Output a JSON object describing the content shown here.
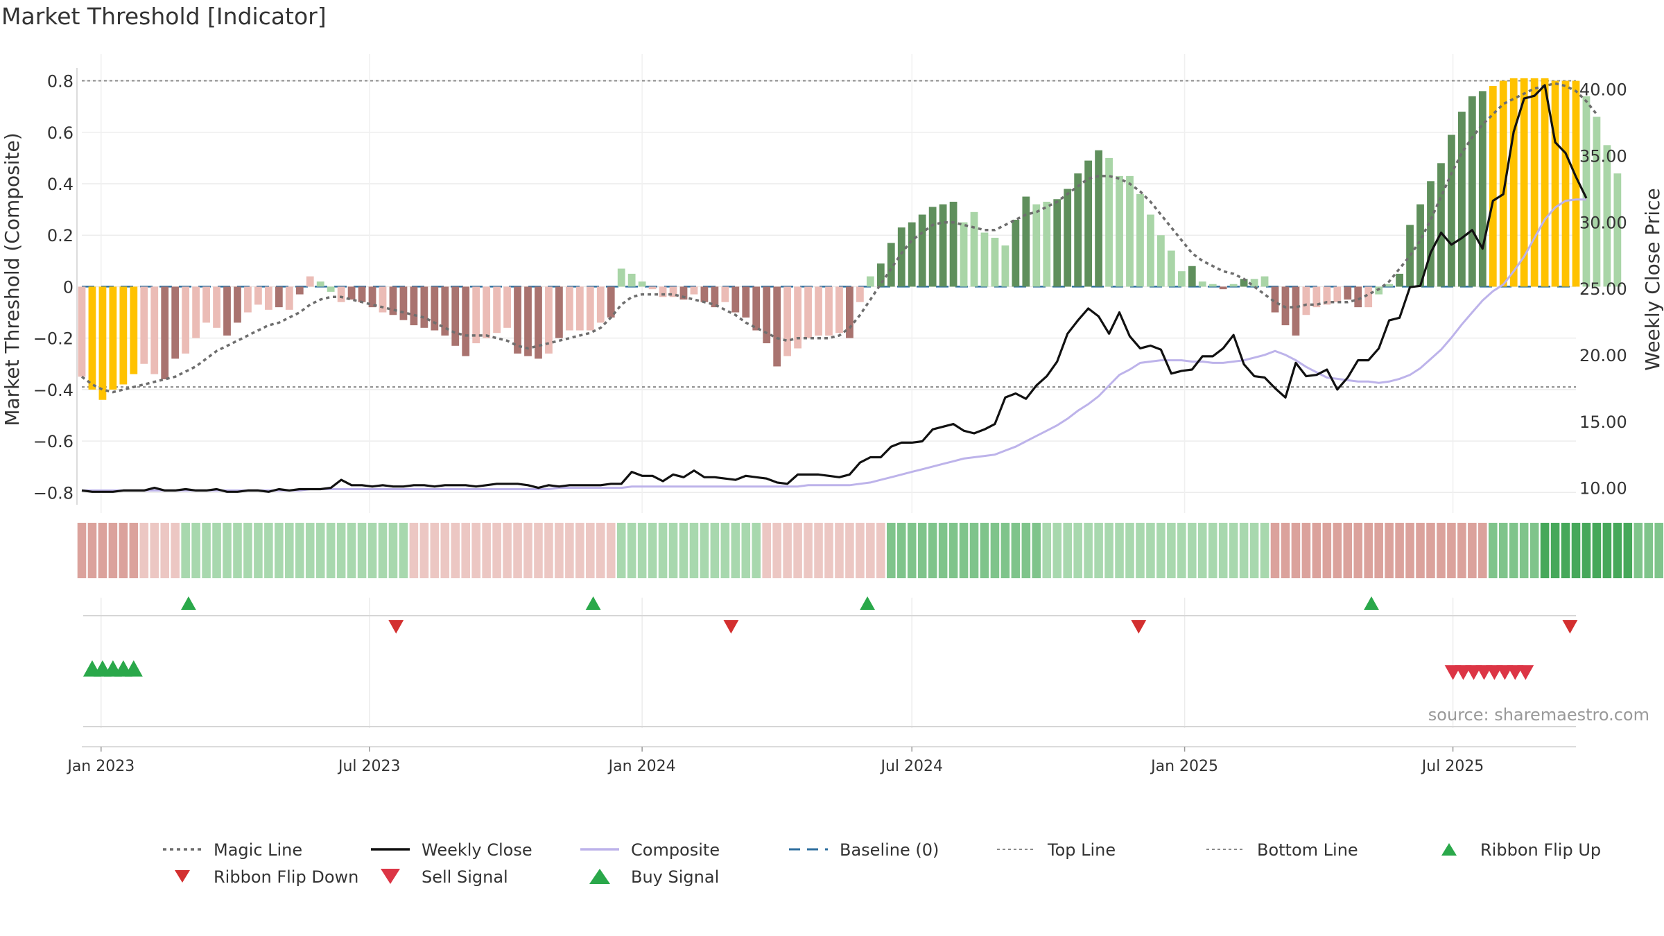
{
  "title": "Market Threshold [Indicator]",
  "source_text": "source: sharemaestro.com",
  "colors": {
    "magic_line": "#6e6e6e",
    "weekly_close": "#111111",
    "composite": "#bdb3ea",
    "baseline": "#2f6f9f",
    "threshold_lines": "#8a8a8a",
    "up_strong": "#5f8f5c",
    "up_weak": "#a9d5a7",
    "down_strong": "#a9736f",
    "down_weak": "#ebbcb6",
    "extreme": "#ffc200",
    "buy": "#2aa84a",
    "sell": "#dc3545",
    "flip_down": "#d32f2f"
  },
  "chart_data": {
    "type": "bar",
    "title": "Market Threshold [Indicator]",
    "ylabel": "Market Threshold (Composite)",
    "y2label": "Weekly Close Price",
    "ylim": [
      -0.88,
      0.85
    ],
    "y2lim": [
      8.1,
      41.6
    ],
    "yticks": [
      "0.8",
      "0.6",
      "0.4",
      "0.2",
      "0",
      "−0.2",
      "−0.4",
      "−0.6",
      "−0.8"
    ],
    "y2ticks": [
      "40.00",
      "35.00",
      "30.00",
      "25.00",
      "20.00",
      "15.00",
      "10.00"
    ],
    "x_range": [
      "2022-12-19",
      "2025-09-22"
    ],
    "x_ticks": [
      {
        "date": "2023-01-01",
        "label": "Jan 2023"
      },
      {
        "date": "2023-07-01",
        "label": "Jul 2023"
      },
      {
        "date": "2024-01-01",
        "label": "Jan 2024"
      },
      {
        "date": "2024-07-01",
        "label": "Jul 2024"
      },
      {
        "date": "2025-01-01",
        "label": "Jan 2025"
      },
      {
        "date": "2025-07-01",
        "label": "Jul 2025"
      }
    ],
    "reference_lines": {
      "top_line": 0.8,
      "bottom_line": -0.39,
      "baseline": 0
    },
    "grid": true,
    "legend_position": "bottom",
    "legend": [
      {
        "label": "Magic Line",
        "kind": "dotted"
      },
      {
        "label": "Weekly Close",
        "kind": "solid-black"
      },
      {
        "label": "Composite",
        "kind": "solid-lavender"
      },
      {
        "label": "Baseline (0)",
        "kind": "dashed-blue"
      },
      {
        "label": "Top Line",
        "kind": "dotted-thin"
      },
      {
        "label": "Bottom Line",
        "kind": "dotted-thin"
      },
      {
        "label": "Ribbon Flip Up",
        "kind": "tri-up-small"
      },
      {
        "label": "Ribbon Flip Down",
        "kind": "tri-down-small"
      },
      {
        "label": "Sell Signal",
        "kind": "tri-down-big"
      },
      {
        "label": "Buy Signal",
        "kind": "tri-up-big"
      }
    ],
    "start_date": "2022-12-19",
    "composite_bars": [
      -0.35,
      -0.4,
      -0.44,
      -0.4,
      -0.38,
      -0.34,
      -0.3,
      -0.34,
      -0.36,
      -0.28,
      -0.26,
      -0.2,
      -0.14,
      -0.16,
      -0.19,
      -0.14,
      -0.1,
      -0.07,
      -0.09,
      -0.08,
      -0.09,
      -0.03,
      0.04,
      0.02,
      -0.02,
      -0.06,
      -0.05,
      -0.06,
      -0.08,
      -0.1,
      -0.11,
      -0.13,
      -0.15,
      -0.16,
      -0.17,
      -0.19,
      -0.23,
      -0.27,
      -0.22,
      -0.2,
      -0.18,
      -0.16,
      -0.26,
      -0.27,
      -0.28,
      -0.26,
      -0.2,
      -0.17,
      -0.17,
      -0.17,
      -0.14,
      -0.12,
      0.07,
      0.05,
      0.02,
      -0.01,
      -0.04,
      -0.04,
      -0.05,
      -0.03,
      -0.06,
      -0.08,
      -0.06,
      -0.1,
      -0.12,
      -0.17,
      -0.22,
      -0.31,
      -0.27,
      -0.24,
      -0.2,
      -0.19,
      -0.19,
      -0.18,
      -0.2,
      -0.06,
      0.04,
      0.09,
      0.17,
      0.23,
      0.25,
      0.28,
      0.31,
      0.32,
      0.33,
      0.25,
      0.29,
      0.21,
      0.19,
      0.16,
      0.26,
      0.35,
      0.32,
      0.33,
      0.34,
      0.38,
      0.44,
      0.49,
      0.53,
      0.5,
      0.43,
      0.43,
      0.36,
      0.28,
      0.2,
      0.14,
      0.06,
      0.08,
      0.02,
      0.01,
      -0.01,
      0.01,
      0.03,
      0.03,
      0.04,
      -0.1,
      -0.15,
      -0.19,
      -0.11,
      -0.08,
      -0.07,
      -0.06,
      -0.05,
      -0.08,
      -0.08,
      -0.03,
      0.01,
      0.05,
      0.24,
      0.32,
      0.41,
      0.48,
      0.59,
      0.68,
      0.74,
      0.76,
      0.78,
      0.8,
      0.81,
      0.81,
      0.81,
      0.81,
      0.8,
      0.8,
      0.8,
      0.74,
      0.66,
      0.55,
      0.44
    ],
    "bar_colors": [
      "down_weak",
      "extreme",
      "extreme",
      "extreme",
      "extreme",
      "extreme",
      "down_weak",
      "down_weak",
      "down_strong",
      "down_strong",
      "down_weak",
      "down_weak",
      "down_weak",
      "down_weak",
      "down_strong",
      "down_strong",
      "down_weak",
      "down_weak",
      "down_weak",
      "down_strong",
      "down_weak",
      "down_strong",
      "down_weak",
      "up_weak",
      "up_weak",
      "down_weak",
      "down_strong",
      "down_strong",
      "down_strong",
      "down_weak",
      "down_strong",
      "down_strong",
      "down_strong",
      "down_strong",
      "down_strong",
      "down_strong",
      "down_strong",
      "down_strong",
      "down_weak",
      "down_weak",
      "down_weak",
      "down_weak",
      "down_strong",
      "down_strong",
      "down_strong",
      "down_weak",
      "down_strong",
      "down_weak",
      "down_weak",
      "down_weak",
      "down_weak",
      "down_strong",
      "up_weak",
      "up_weak",
      "up_weak",
      "down_weak",
      "down_weak",
      "down_weak",
      "down_strong",
      "down_weak",
      "down_strong",
      "down_strong",
      "down_weak",
      "down_strong",
      "down_strong",
      "down_strong",
      "down_strong",
      "down_strong",
      "down_weak",
      "down_weak",
      "down_weak",
      "down_weak",
      "down_weak",
      "down_weak",
      "down_strong",
      "down_weak",
      "up_weak",
      "up_strong",
      "up_strong",
      "up_strong",
      "up_strong",
      "up_strong",
      "up_strong",
      "up_strong",
      "up_strong",
      "up_weak",
      "up_weak",
      "up_weak",
      "up_weak",
      "up_weak",
      "up_strong",
      "up_strong",
      "up_weak",
      "up_weak",
      "up_strong",
      "up_strong",
      "up_strong",
      "up_strong",
      "up_strong",
      "up_weak",
      "up_weak",
      "up_weak",
      "up_weak",
      "up_weak",
      "up_weak",
      "up_weak",
      "up_weak",
      "up_strong",
      "up_weak",
      "up_weak",
      "down_strong",
      "up_weak",
      "up_strong",
      "up_weak",
      "up_weak",
      "down_strong",
      "down_strong",
      "down_strong",
      "down_weak",
      "down_weak",
      "down_weak",
      "down_weak",
      "down_strong",
      "down_strong",
      "down_weak",
      "up_weak",
      "up_weak",
      "up_strong",
      "up_strong",
      "up_strong",
      "up_strong",
      "up_strong",
      "up_strong",
      "up_strong",
      "up_strong",
      "up_strong",
      "extreme",
      "extreme",
      "extreme",
      "extreme",
      "extreme",
      "extreme",
      "extreme",
      "extreme",
      "extreme",
      "up_weak",
      "up_weak",
      "up_weak",
      "up_weak"
    ],
    "weekly_close": [
      9.8,
      9.7,
      9.7,
      9.7,
      9.8,
      9.8,
      9.8,
      10.0,
      9.8,
      9.8,
      9.9,
      9.8,
      9.8,
      9.9,
      9.7,
      9.7,
      9.8,
      9.8,
      9.7,
      9.9,
      9.8,
      9.9,
      9.9,
      9.9,
      10.0,
      10.6,
      10.2,
      10.2,
      10.1,
      10.2,
      10.1,
      10.1,
      10.2,
      10.2,
      10.1,
      10.2,
      10.2,
      10.2,
      10.1,
      10.2,
      10.3,
      10.3,
      10.3,
      10.2,
      10.0,
      10.2,
      10.1,
      10.2,
      10.2,
      10.2,
      10.2,
      10.3,
      10.3,
      11.2,
      10.9,
      10.9,
      10.5,
      11.0,
      10.8,
      11.3,
      10.8,
      10.8,
      10.7,
      10.6,
      10.9,
      10.8,
      10.7,
      10.4,
      10.3,
      11.0,
      11.0,
      11.0,
      10.9,
      10.8,
      11.0,
      11.9,
      12.3,
      12.3,
      13.1,
      13.4,
      13.4,
      13.5,
      14.4,
      14.6,
      14.8,
      14.3,
      14.1,
      14.4,
      14.8,
      16.8,
      17.1,
      16.7,
      17.7,
      18.4,
      19.5,
      21.6,
      22.6,
      23.5,
      22.9,
      21.6,
      23.2,
      21.4,
      20.5,
      20.7,
      20.4,
      18.6,
      18.8,
      18.9,
      19.9,
      19.9,
      20.5,
      21.5,
      19.3,
      18.4,
      18.3,
      17.5,
      16.8,
      19.4,
      18.4,
      18.5,
      18.9,
      17.4,
      18.3,
      19.6,
      19.6,
      20.5,
      22.6,
      22.8,
      25.1,
      25.2,
      27.7,
      29.2,
      28.3,
      28.8,
      29.4,
      28.0,
      31.6,
      32.1,
      36.8,
      39.3,
      39.5,
      40.3,
      36.0,
      35.2,
      33.4,
      31.8
    ],
    "composite_line": [
      9.8,
      9.8,
      9.8,
      9.8,
      9.8,
      9.8,
      9.8,
      9.8,
      9.8,
      9.8,
      9.8,
      9.8,
      9.8,
      9.8,
      9.8,
      9.8,
      9.8,
      9.8,
      9.8,
      9.8,
      9.8,
      9.8,
      9.9,
      9.9,
      9.9,
      9.9,
      9.9,
      9.9,
      9.9,
      9.9,
      9.9,
      9.9,
      9.9,
      9.9,
      9.9,
      9.9,
      9.9,
      9.9,
      9.9,
      9.9,
      9.9,
      9.9,
      9.9,
      9.9,
      9.9,
      9.9,
      10.0,
      10.0,
      10.0,
      10.0,
      10.0,
      10.0,
      10.0,
      10.1,
      10.1,
      10.1,
      10.1,
      10.1,
      10.1,
      10.1,
      10.1,
      10.1,
      10.1,
      10.1,
      10.1,
      10.1,
      10.1,
      10.1,
      10.1,
      10.1,
      10.2,
      10.2,
      10.2,
      10.2,
      10.2,
      10.3,
      10.4,
      10.6,
      10.8,
      11.0,
      11.2,
      11.4,
      11.6,
      11.8,
      12.0,
      12.2,
      12.3,
      12.4,
      12.5,
      12.8,
      13.1,
      13.5,
      13.9,
      14.3,
      14.7,
      15.2,
      15.8,
      16.3,
      16.9,
      17.7,
      18.5,
      18.9,
      19.4,
      19.5,
      19.6,
      19.6,
      19.6,
      19.5,
      19.5,
      19.4,
      19.4,
      19.5,
      19.6,
      19.8,
      20.0,
      20.3,
      20.0,
      19.6,
      19.1,
      18.7,
      18.3,
      18.2,
      18.1,
      18.0,
      18.0,
      17.9,
      18.0,
      18.2,
      18.5,
      19.0,
      19.7,
      20.4,
      21.3,
      22.3,
      23.2,
      24.1,
      24.8,
      25.3,
      26.3,
      27.4,
      28.8,
      30.2,
      31.1,
      31.6,
      31.7,
      31.7
    ],
    "magic_line": [
      -0.35,
      -0.38,
      -0.4,
      -0.41,
      -0.4,
      -0.39,
      -0.38,
      -0.37,
      -0.36,
      -0.35,
      -0.33,
      -0.31,
      -0.28,
      -0.25,
      -0.23,
      -0.21,
      -0.19,
      -0.17,
      -0.15,
      -0.14,
      -0.12,
      -0.1,
      -0.07,
      -0.05,
      -0.04,
      -0.04,
      -0.05,
      -0.06,
      -0.07,
      -0.08,
      -0.09,
      -0.1,
      -0.11,
      -0.12,
      -0.14,
      -0.16,
      -0.18,
      -0.19,
      -0.19,
      -0.19,
      -0.2,
      -0.21,
      -0.23,
      -0.24,
      -0.23,
      -0.22,
      -0.21,
      -0.2,
      -0.19,
      -0.18,
      -0.16,
      -0.12,
      -0.07,
      -0.04,
      -0.03,
      -0.03,
      -0.03,
      -0.03,
      -0.04,
      -0.05,
      -0.06,
      -0.07,
      -0.09,
      -0.11,
      -0.14,
      -0.16,
      -0.18,
      -0.2,
      -0.21,
      -0.2,
      -0.2,
      -0.2,
      -0.2,
      -0.19,
      -0.16,
      -0.11,
      -0.05,
      0.01,
      0.07,
      0.13,
      0.18,
      0.21,
      0.24,
      0.25,
      0.25,
      0.24,
      0.23,
      0.22,
      0.22,
      0.24,
      0.26,
      0.28,
      0.29,
      0.31,
      0.33,
      0.36,
      0.39,
      0.42,
      0.43,
      0.43,
      0.42,
      0.4,
      0.37,
      0.33,
      0.28,
      0.23,
      0.18,
      0.13,
      0.1,
      0.08,
      0.06,
      0.05,
      0.03,
      0.0,
      -0.03,
      -0.06,
      -0.08,
      -0.08,
      -0.07,
      -0.07,
      -0.06,
      -0.06,
      -0.06,
      -0.05,
      -0.03,
      -0.01,
      0.02,
      0.07,
      0.12,
      0.18,
      0.26,
      0.35,
      0.44,
      0.52,
      0.58,
      0.63,
      0.67,
      0.71,
      0.73,
      0.75,
      0.77,
      0.78,
      0.79,
      0.78,
      0.76,
      0.72,
      0.67
    ],
    "ribbon_levels": [
      -2,
      -2,
      -2,
      -2,
      -2,
      -2,
      -1,
      -1,
      -1,
      -1,
      1,
      1,
      1,
      1,
      1,
      1,
      1,
      1,
      1,
      1,
      1,
      1,
      1,
      1,
      1,
      1,
      1,
      1,
      1,
      1,
      1,
      1,
      -1,
      -1,
      -1,
      -1,
      -1,
      -1,
      -1,
      -1,
      -1,
      -1,
      -1,
      -1,
      -1,
      -1,
      -1,
      -1,
      -1,
      -1,
      -1,
      -1,
      1,
      1,
      1,
      1,
      1,
      1,
      1,
      1,
      1,
      1,
      1,
      1,
      1,
      1,
      -1,
      -1,
      -1,
      -1,
      -1,
      -1,
      -1,
      -1,
      -1,
      -1,
      -1,
      -1,
      2,
      2,
      2,
      2,
      2,
      2,
      2,
      2,
      2,
      2,
      2,
      2,
      2,
      2,
      2,
      1,
      1,
      1,
      1,
      1,
      1,
      1,
      1,
      1,
      1,
      1,
      1,
      1,
      1,
      1,
      1,
      1,
      1,
      1,
      1,
      1,
      1,
      -2,
      -2,
      -2,
      -2,
      -2,
      -2,
      -2,
      -2,
      -2,
      -2,
      -2,
      -2,
      -2,
      -2,
      -2,
      -2,
      -2,
      -2,
      -2,
      -2,
      -2,
      2,
      2,
      2,
      2,
      2,
      3,
      3,
      3,
      3,
      3,
      3,
      3,
      3,
      3,
      2,
      2,
      2,
      2,
      1,
      1,
      -1
    ],
    "ribbon_flip_up": [
      "2023-03-01",
      "2023-11-29",
      "2024-06-01",
      "2025-05-07"
    ],
    "ribbon_flip_down": [
      "2023-07-19",
      "2024-03-01",
      "2024-12-01",
      "2025-09-18"
    ],
    "buy_signals": [
      "2022-12-26",
      "2023-01-02",
      "2023-01-09",
      "2023-01-16",
      "2023-01-23"
    ],
    "sell_signals": [
      "2025-07-01",
      "2025-07-08",
      "2025-07-15",
      "2025-07-22",
      "2025-07-29",
      "2025-08-05",
      "2025-08-12",
      "2025-08-19"
    ]
  }
}
